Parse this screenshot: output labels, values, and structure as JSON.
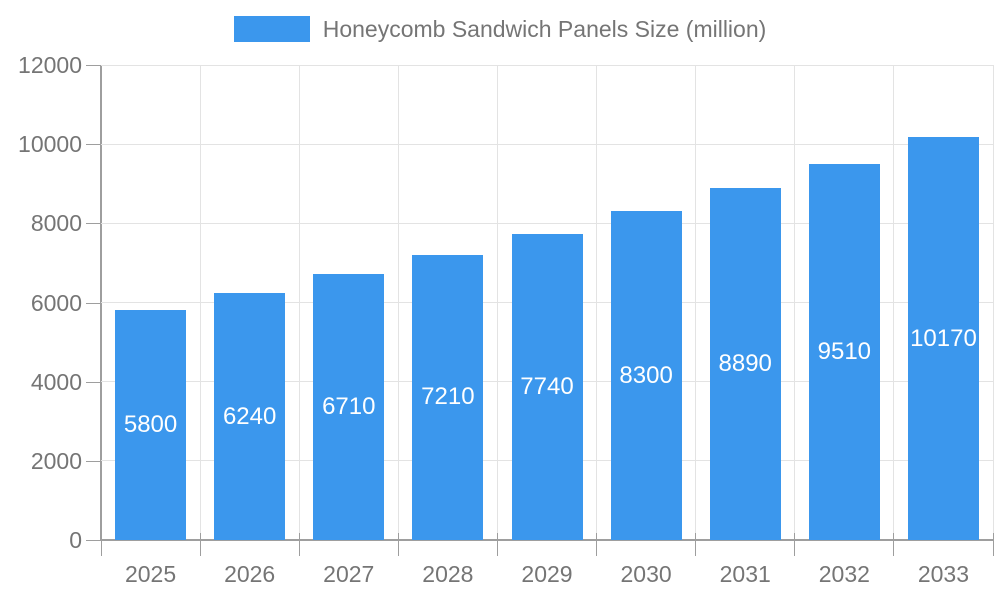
{
  "chart_data": {
    "type": "bar",
    "title": "Honeycomb Sandwich Panels Size (million)",
    "legend": [
      "Honeycomb Sandwich Panels Size (million)"
    ],
    "legend_position": "top-center",
    "categories": [
      "2025",
      "2026",
      "2027",
      "2028",
      "2029",
      "2030",
      "2031",
      "2032",
      "2033"
    ],
    "series": [
      {
        "name": "Honeycomb Sandwich Panels Size (million)",
        "values": [
          5800,
          6240,
          6710,
          7210,
          7740,
          8300,
          8890,
          9510,
          10170
        ]
      }
    ],
    "data_labels": [
      "5800",
      "6240",
      "6710",
      "7210",
      "7740",
      "8300",
      "8890",
      "9510",
      "10170"
    ],
    "data_label_position": "inside-center",
    "xlabel": "",
    "ylabel": "",
    "ylim": [
      0,
      12000
    ],
    "yticks": [
      0,
      2000,
      4000,
      6000,
      8000,
      10000,
      12000
    ],
    "grid": true,
    "colors": {
      "bar": "#3B97ED",
      "bar_label_text": "#ffffff",
      "axis_text": "#757575",
      "axis_line": "#9e9e9e",
      "gridline": "#e3e3e3",
      "background": "#ffffff"
    }
  }
}
